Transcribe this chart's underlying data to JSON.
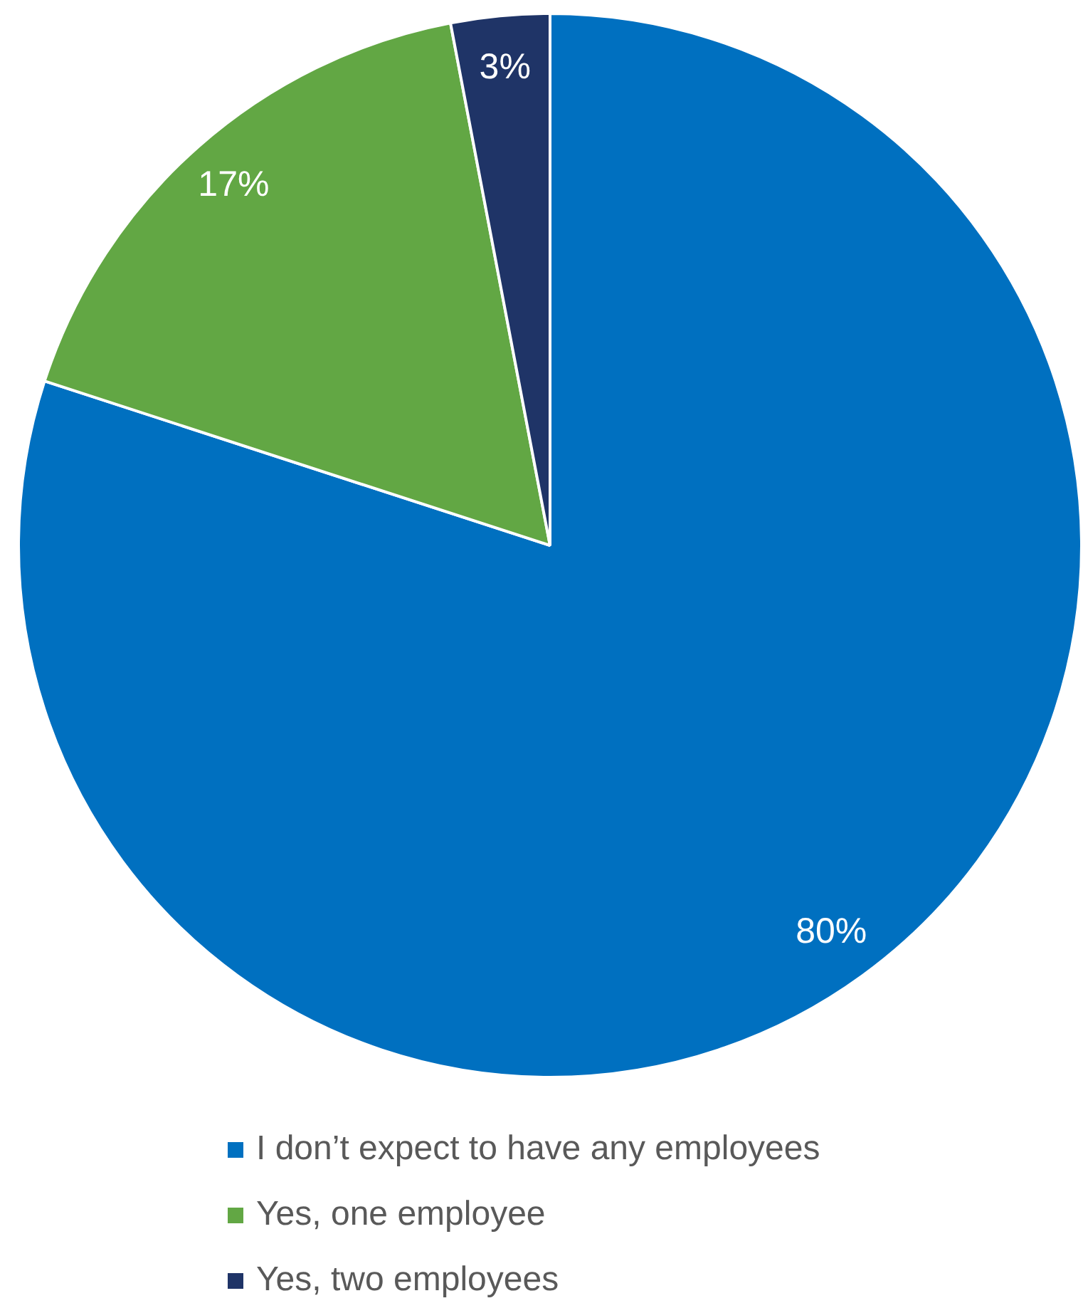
{
  "chart_data": {
    "type": "pie",
    "categories": [
      "I don’t expect to have any employees",
      "Yes, one employee",
      "Yes, two employees"
    ],
    "values": [
      80,
      17,
      3
    ],
    "colors": [
      "#0070c0",
      "#62a744",
      "#1f3467"
    ],
    "value_labels": [
      "80%",
      "17%",
      "3%"
    ],
    "legend": "bottom"
  }
}
